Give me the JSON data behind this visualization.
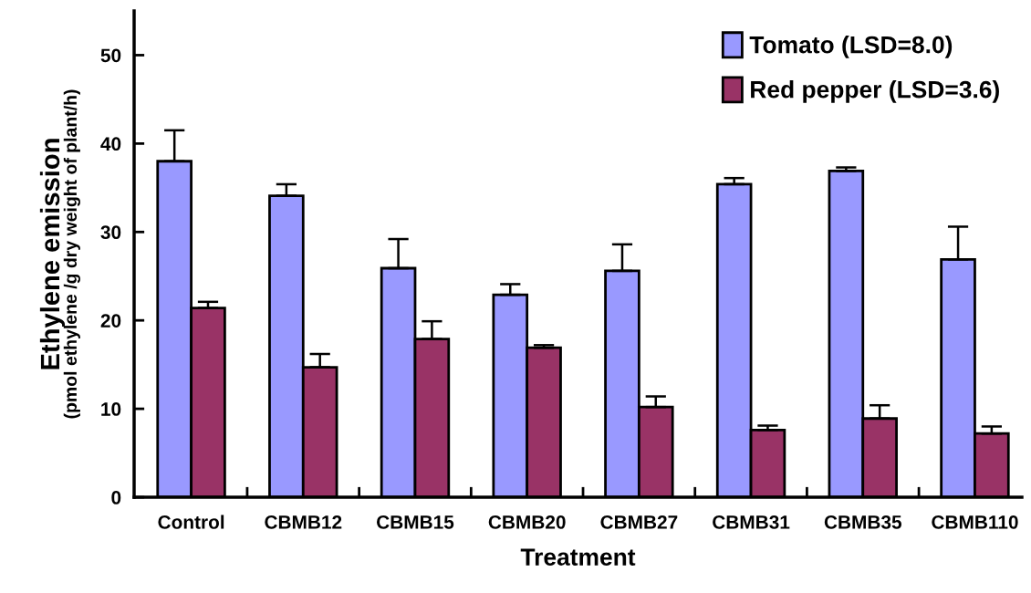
{
  "chart_data": {
    "type": "bar",
    "xlabel": "Treatment",
    "ylabel": "Ethylene emission\n(pmol ethylene /g dry weight of plant/h)",
    "categories": [
      "Control",
      "CBMB12",
      "CBMB15",
      "CBMB20",
      "CBMB27",
      "CBMB31",
      "CBMB35",
      "CBMB110"
    ],
    "series": [
      {
        "name": "Tomato (LSD=8.0)",
        "color": "#9999ff",
        "values": [
          38.0,
          34.1,
          25.9,
          22.9,
          25.6,
          35.4,
          36.9,
          26.9
        ],
        "errors": [
          3.5,
          1.3,
          3.3,
          1.2,
          3.0,
          0.7,
          0.4,
          3.7
        ]
      },
      {
        "name": "Red pepper (LSD=3.6)",
        "color": "#993366",
        "values": [
          21.4,
          14.7,
          17.9,
          16.9,
          10.2,
          7.6,
          8.9,
          7.2
        ],
        "errors": [
          0.7,
          1.5,
          2.0,
          0.3,
          1.2,
          0.5,
          1.5,
          0.8
        ]
      }
    ],
    "ylim": [
      0,
      55
    ],
    "yticks": [
      0,
      10,
      20,
      30,
      40,
      50
    ],
    "grid": false,
    "legend": "top right"
  }
}
